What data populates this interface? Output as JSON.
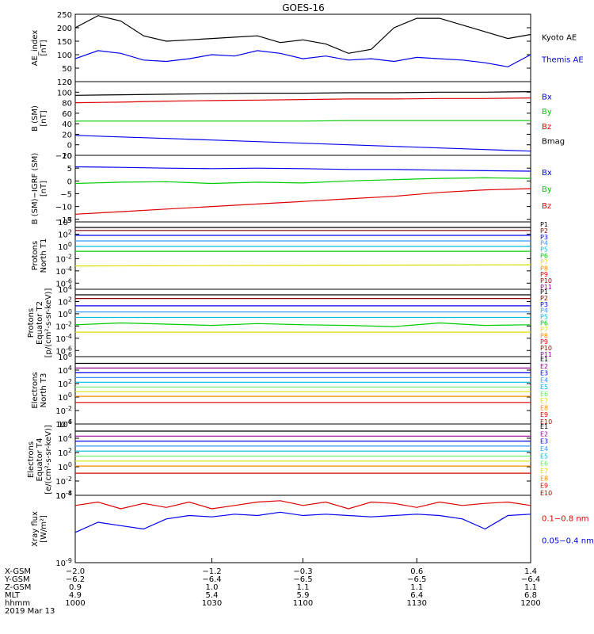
{
  "title": "GOES-16",
  "colors": {
    "black": "#000000",
    "blue": "#0000ee",
    "green": "#00cc00",
    "red": "#dd0000",
    "cyan": "#00bbdd",
    "yellow": "#dddd00",
    "orange": "#ff8800",
    "darkred": "#aa0000",
    "lightblue": "#3399ff",
    "ltcyan": "#22dddd",
    "ltgreen": "#66ee66",
    "navy": "#000099",
    "maroon": "#880000",
    "purple": "#990099",
    "magenta": "#cc0077"
  },
  "chart_data": [
    {
      "type": "line",
      "id": "ae",
      "ylabel": "AE_index [nT]",
      "ylabel_lines": [
        "AE_index",
        "[nT]"
      ],
      "ylim": [
        0,
        250
      ],
      "ylog": false,
      "yticks": [
        "0",
        "50",
        "100",
        "150",
        "200",
        "250"
      ],
      "ytick_values": [
        0,
        50,
        100,
        150,
        200,
        250
      ],
      "x": [
        0,
        10,
        20,
        30,
        40,
        50,
        60,
        70,
        80,
        90,
        100,
        110,
        120,
        130,
        140,
        150,
        160,
        170,
        180,
        190,
        200
      ],
      "series": [
        {
          "name": "Kyoto AE",
          "color": "#000000",
          "values": [
            200,
            245,
            225,
            170,
            150,
            155,
            160,
            165,
            170,
            145,
            155,
            140,
            105,
            120,
            200,
            235,
            235,
            210,
            185,
            160,
            175
          ]
        },
        {
          "name": "Themis AE",
          "color": "#0000ee",
          "values": [
            85,
            115,
            105,
            80,
            75,
            85,
            100,
            95,
            115,
            105,
            85,
            95,
            80,
            85,
            75,
            90,
            85,
            80,
            70,
            55,
            100
          ]
        }
      ],
      "legend": [
        "Kyoto AE",
        "Themis AE"
      ]
    },
    {
      "type": "line",
      "id": "bsm",
      "ylabel": "B (SM) [nT]",
      "ylabel_lines": [
        "B (SM)",
        "[nT]"
      ],
      "ylim": [
        -20,
        120
      ],
      "ylog": false,
      "yticks": [
        "−20",
        "0",
        "20",
        "40",
        "60",
        "80",
        "100",
        "120"
      ],
      "ytick_values": [
        -20,
        0,
        20,
        40,
        60,
        80,
        100,
        120
      ],
      "x": [
        0,
        20,
        40,
        60,
        80,
        100,
        120,
        140,
        160,
        180,
        200
      ],
      "series": [
        {
          "name": "Bx",
          "color": "#0000ee",
          "values": [
            18,
            15,
            12,
            9,
            6,
            3,
            0,
            -3,
            -6,
            -9,
            -12
          ]
        },
        {
          "name": "By",
          "color": "#00cc00",
          "values": [
            45,
            45,
            45,
            45,
            45,
            45,
            46,
            46,
            46,
            46,
            46
          ]
        },
        {
          "name": "Bz",
          "color": "#dd0000",
          "values": [
            80,
            81,
            83,
            84,
            85,
            86,
            87,
            87,
            88,
            88,
            89
          ]
        },
        {
          "name": "Bmag",
          "color": "#000000",
          "values": [
            94,
            95,
            96,
            97,
            98,
            98,
            99,
            99,
            100,
            100,
            101
          ]
        }
      ],
      "legend": [
        "Bx",
        "By",
        "Bz",
        "Bmag"
      ]
    },
    {
      "type": "line",
      "id": "bigrf",
      "ylabel": "B (SM)−IGRF (SM) [nT]",
      "ylabel_lines": [
        "B (SM)−IGRF (SM)",
        "[nT]"
      ],
      "ylim": [
        -16,
        10
      ],
      "ylog": false,
      "yticks": [
        "−15",
        "−10",
        "−5",
        "0",
        "5",
        "10"
      ],
      "ytick_values": [
        -15,
        -10,
        -5,
        0,
        5,
        10
      ],
      "x": [
        0,
        20,
        40,
        60,
        80,
        100,
        120,
        140,
        160,
        180,
        200
      ],
      "series": [
        {
          "name": "Bx",
          "color": "#0000ee",
          "values": [
            5.5,
            5.3,
            5,
            4.8,
            5,
            4.8,
            4.5,
            4.5,
            4.2,
            4,
            3.8
          ]
        },
        {
          "name": "By",
          "color": "#00cc00",
          "values": [
            -1,
            -0.5,
            -0.3,
            -1,
            -0.5,
            -0.8,
            0,
            0.5,
            1,
            1.2,
            1
          ]
        },
        {
          "name": "Bz",
          "color": "#dd0000",
          "values": [
            -13,
            -12,
            -11,
            -10,
            -9,
            -8,
            -7,
            -6,
            -4.5,
            -3.5,
            -3
          ]
        }
      ],
      "legend": [
        "Bx",
        "By",
        "Bz"
      ]
    },
    {
      "type": "line",
      "id": "pnorth",
      "ylabel": "Protons North T1",
      "ylabel_lines": [
        "Protons",
        "North T1"
      ],
      "ylim": [
        -7,
        4
      ],
      "ylog": true,
      "yticks": [
        "10^-6",
        "10^-4",
        "10^-2",
        "10^0",
        "10^2",
        "10^4"
      ],
      "ytick_values": [
        -6,
        -4,
        -2,
        0,
        2,
        4
      ],
      "x": [
        0,
        200
      ],
      "series": [
        {
          "name": "P1",
          "color": "#000000",
          "values": [
            3.1,
            3.1
          ]
        },
        {
          "name": "P2",
          "color": "#880000",
          "values": [
            2.6,
            2.6
          ]
        },
        {
          "name": "P3",
          "color": "#0000ee",
          "values": [
            1.8,
            1.8
          ]
        },
        {
          "name": "P4",
          "color": "#3399ff",
          "values": [
            0.9,
            0.9
          ]
        },
        {
          "name": "P5",
          "color": "#00bbdd",
          "values": [
            0.0,
            0.0
          ]
        },
        {
          "name": "P6",
          "color": "#00cc00",
          "values": [
            -0.8,
            -0.8
          ]
        },
        {
          "name": "P7",
          "color": "#dddd00",
          "values": [
            -3.2,
            -3.0
          ]
        }
      ],
      "legend": [
        "P1",
        "P2",
        "P3",
        "P4",
        "P5",
        "P6",
        "P7",
        "P8",
        "P9",
        "P10",
        "P11"
      ]
    },
    {
      "type": "line",
      "id": "pequator",
      "ylabel": "Protons Equator T2 [p/(cm²-s-sr-keV)]",
      "ylabel_lines": [
        "Protons",
        "Equator T2",
        "[p/(cm²-s-sr-keV)]"
      ],
      "ylim": [
        -7,
        4
      ],
      "ylog": true,
      "yticks": [
        "10^-6",
        "10^-4",
        "10^-2",
        "10^0",
        "10^2",
        "10^4"
      ],
      "ytick_values": [
        -6,
        -4,
        -2,
        0,
        2,
        4
      ],
      "x": [
        0,
        20,
        40,
        60,
        80,
        100,
        120,
        140,
        160,
        180,
        200
      ],
      "series": [
        {
          "name": "P1",
          "color": "#000000",
          "values": [
            3.1,
            3.1,
            3.1,
            3.1,
            3.1,
            3.1,
            3.1,
            3.1,
            3.1,
            3.1,
            3.1
          ]
        },
        {
          "name": "P2",
          "color": "#880000",
          "values": [
            2.5,
            2.5,
            2.5,
            2.5,
            2.5,
            2.5,
            2.5,
            2.5,
            2.5,
            2.5,
            2.5
          ]
        },
        {
          "name": "P3",
          "color": "#0000ee",
          "values": [
            1.3,
            1.3,
            1.3,
            1.3,
            1.3,
            1.3,
            1.3,
            1.3,
            1.3,
            1.3,
            1.3
          ]
        },
        {
          "name": "P4",
          "color": "#3399ff",
          "values": [
            0.3,
            0.3,
            0.3,
            0.3,
            0.3,
            0.3,
            0.3,
            0.3,
            0.3,
            0.3,
            0.3
          ]
        },
        {
          "name": "P5",
          "color": "#00bbdd",
          "values": [
            -0.6,
            -0.6,
            -0.6,
            -0.6,
            -0.6,
            -0.6,
            -0.6,
            -0.6,
            -0.6,
            -0.6,
            -0.6
          ]
        },
        {
          "name": "P6",
          "color": "#00cc00",
          "values": [
            -1.8,
            -1.5,
            -1.7,
            -1.9,
            -1.6,
            -1.8,
            -1.9,
            -2.1,
            -1.5,
            -1.9,
            -1.8
          ]
        },
        {
          "name": "P7",
          "color": "#dddd00",
          "values": [
            -3.0,
            -3.0,
            -3.0,
            -3.0,
            -3.0,
            -3.0,
            -3.0,
            -3.0,
            -3.0,
            -3.0,
            -3.0
          ]
        }
      ],
      "legend": [
        "P1",
        "P2",
        "P3",
        "P4",
        "P5",
        "P6",
        "P7",
        "P8",
        "P9",
        "P10",
        "P11"
      ]
    },
    {
      "type": "line",
      "id": "enorth",
      "ylabel": "Electrons North T3",
      "ylabel_lines": [
        "Electrons",
        "North T3"
      ],
      "ylim": [
        -4,
        6
      ],
      "ylog": true,
      "yticks": [
        "10^-4",
        "10^-2",
        "10^0",
        "10^2",
        "10^4",
        "10^6"
      ],
      "ytick_values": [
        -4,
        -2,
        0,
        2,
        4,
        6
      ],
      "x": [
        0,
        200
      ],
      "series": [
        {
          "name": "E1",
          "color": "#000000",
          "values": [
            5.0,
            5.0
          ]
        },
        {
          "name": "E2",
          "color": "#990099",
          "values": [
            4.3,
            4.3
          ]
        },
        {
          "name": "E3",
          "color": "#0000ee",
          "values": [
            3.6,
            3.6
          ]
        },
        {
          "name": "E4",
          "color": "#3399ff",
          "values": [
            2.9,
            2.9
          ]
        },
        {
          "name": "E5",
          "color": "#00bbdd",
          "values": [
            2.2,
            2.2
          ]
        },
        {
          "name": "E6",
          "color": "#66ee66",
          "values": [
            1.5,
            1.5
          ]
        },
        {
          "name": "E7",
          "color": "#dddd00",
          "values": [
            0.8,
            0.8
          ]
        },
        {
          "name": "E8",
          "color": "#ff8800",
          "values": [
            0.1,
            0.1
          ]
        },
        {
          "name": "E9",
          "color": "#dd0000",
          "values": [
            -0.8,
            -0.8
          ]
        }
      ],
      "legend": [
        "E1",
        "E2",
        "E3",
        "E4",
        "E5",
        "E6",
        "E7",
        "E8",
        "E9",
        "E10"
      ]
    },
    {
      "type": "line",
      "id": "eequator",
      "ylabel": "Electrons Equator T4 [e/(cm²-s-sr-keV)]",
      "ylabel_lines": [
        "Electrons",
        "Equator T4",
        "[e/(cm²-s-sr-keV)]"
      ],
      "ylim": [
        -4,
        6
      ],
      "ylog": true,
      "yticks": [
        "10^-4",
        "10^-2",
        "10^0",
        "10^2",
        "10^4",
        "10^6"
      ],
      "ytick_values": [
        -4,
        -2,
        0,
        2,
        4,
        6
      ],
      "x": [
        0,
        200
      ],
      "series": [
        {
          "name": "E1",
          "color": "#000000",
          "values": [
            5.0,
            5.0
          ]
        },
        {
          "name": "E2",
          "color": "#990099",
          "values": [
            4.3,
            4.3
          ]
        },
        {
          "name": "E3",
          "color": "#0000ee",
          "values": [
            3.6,
            3.6
          ]
        },
        {
          "name": "E4",
          "color": "#3399ff",
          "values": [
            2.9,
            2.9
          ]
        },
        {
          "name": "E5",
          "color": "#00bbdd",
          "values": [
            2.2,
            2.2
          ]
        },
        {
          "name": "E6",
          "color": "#66ee66",
          "values": [
            1.5,
            1.5
          ]
        },
        {
          "name": "E7",
          "color": "#dddd00",
          "values": [
            0.8,
            0.8
          ]
        },
        {
          "name": "E8",
          "color": "#ff8800",
          "values": [
            0.1,
            0.1
          ]
        },
        {
          "name": "E9",
          "color": "#dd0000",
          "values": [
            -0.9,
            -0.9
          ]
        }
      ],
      "legend": [
        "E1",
        "E2",
        "E3",
        "E4",
        "E5",
        "E6",
        "E7",
        "E8",
        "E9",
        "E10"
      ]
    },
    {
      "type": "line",
      "id": "xray",
      "ylabel": "Xray flux [W/m²]",
      "ylabel_lines": [
        "Xray flux",
        "[W/m²]"
      ],
      "ylim": [
        -9,
        -8
      ],
      "ylog": true,
      "yticks": [
        "10^-9",
        "10^-8"
      ],
      "ytick_values": [
        -9,
        -8
      ],
      "x": [
        0,
        10,
        20,
        30,
        40,
        50,
        60,
        70,
        80,
        90,
        100,
        110,
        120,
        130,
        140,
        150,
        160,
        170,
        180,
        190,
        200
      ],
      "series": [
        {
          "name": "0.1–0.8 nm",
          "color": "#dd0000",
          "values": [
            -8.15,
            -8.1,
            -8.2,
            -8.12,
            -8.18,
            -8.1,
            -8.2,
            -8.15,
            -8.1,
            -8.08,
            -8.15,
            -8.1,
            -8.2,
            -8.1,
            -8.12,
            -8.18,
            -8.1,
            -8.15,
            -8.12,
            -8.1,
            -8.15
          ]
        },
        {
          "name": "0.05–0.4 nm",
          "color": "#0000ee",
          "values": [
            -8.55,
            -8.4,
            -8.45,
            -8.5,
            -8.35,
            -8.3,
            -8.32,
            -8.28,
            -8.3,
            -8.25,
            -8.3,
            -8.28,
            -8.3,
            -8.32,
            -8.3,
            -8.28,
            -8.3,
            -8.35,
            -8.5,
            -8.3,
            -8.28
          ]
        }
      ],
      "legend": [
        "0.1−0.8 nm",
        "0.05−0.4 nm"
      ]
    }
  ],
  "xaxis": {
    "row_labels": [
      "X-GSM",
      "Y-GSM",
      "Z-GSM",
      "MLT",
      "hhmm",
      "2019 Mar 13"
    ],
    "ticks": [
      {
        "x": 0,
        "values": [
          "−2.0",
          "−6.2",
          "0.9",
          "4.9",
          "1000"
        ]
      },
      {
        "x": 60,
        "values": [
          "−1.2",
          "−6.4",
          "1.0",
          "5.4",
          "1030"
        ]
      },
      {
        "x": 100,
        "values": [
          "−0.3",
          "−6.5",
          "1.1",
          "5.9",
          "1100"
        ]
      },
      {
        "x": 150,
        "values": [
          "0.6",
          "−6.5",
          "1.1",
          "6.4",
          "1130"
        ]
      },
      {
        "x": 200,
        "values": [
          "1.4",
          "−6.4",
          "1.1",
          "6.8",
          "1200"
        ]
      }
    ]
  }
}
